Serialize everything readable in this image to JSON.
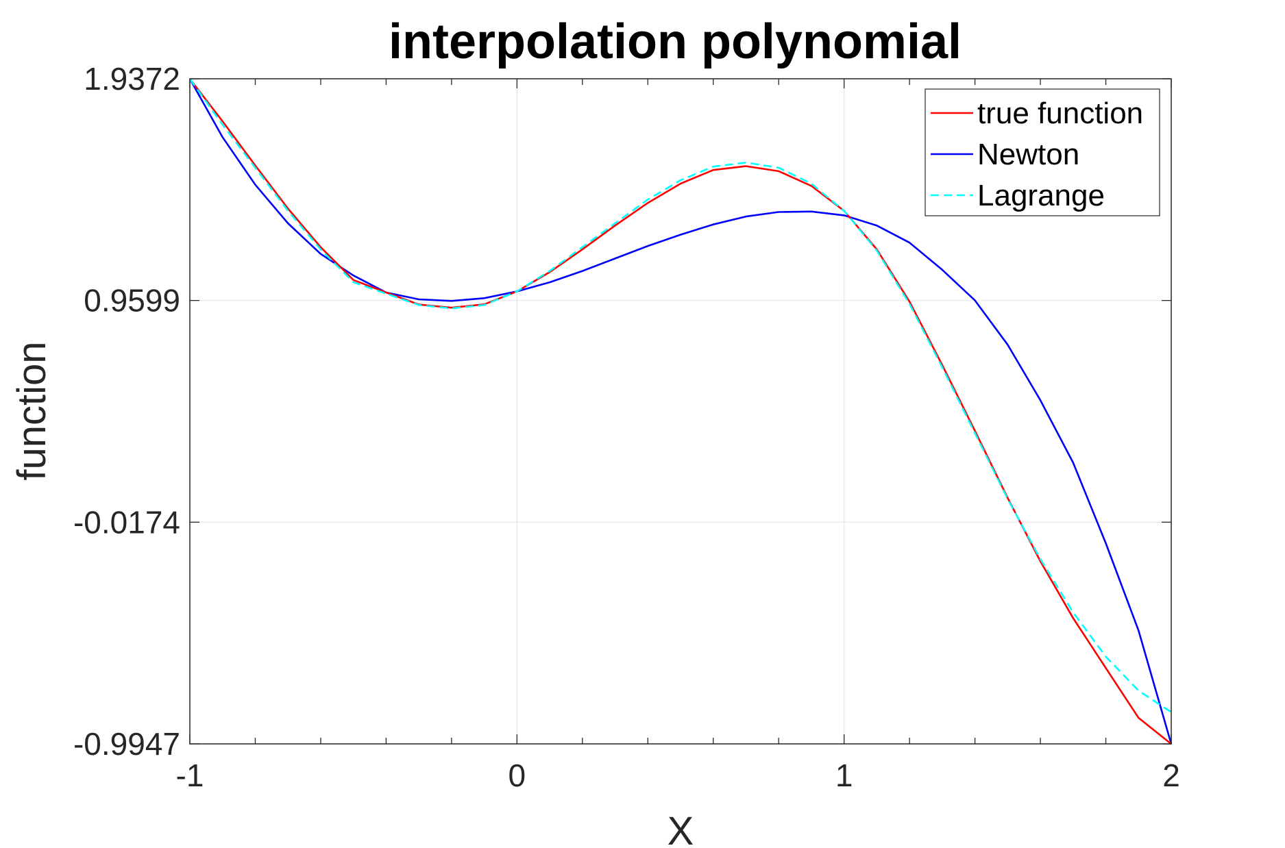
{
  "chart_data": {
    "type": "line",
    "title": "interpolation polynomial",
    "xlabel": "X",
    "ylabel": "function",
    "xlim": [
      -1,
      2
    ],
    "ylim": [
      -0.9947,
      1.9372
    ],
    "xticks": [
      "-1",
      "0",
      "1",
      "2"
    ],
    "yticks": [
      "-0.9947",
      "-0.0174",
      "0.9599",
      "1.9372"
    ],
    "xtick_values": [
      -1,
      0,
      1,
      2
    ],
    "ytick_values": [
      -0.9947,
      -0.0174,
      0.9599,
      1.9372
    ],
    "grid": true,
    "legend_position": "top-right",
    "x": [
      -1.0,
      -0.9,
      -0.8,
      -0.7,
      -0.6,
      -0.5,
      -0.4,
      -0.3,
      -0.2,
      -0.1,
      0.0,
      0.1,
      0.2,
      0.3,
      0.4,
      0.5,
      0.6,
      0.7,
      0.8,
      0.9,
      1.0,
      1.1,
      1.2,
      1.3,
      1.4,
      1.5,
      1.6,
      1.7,
      1.8,
      1.9,
      2.0
    ],
    "series": [
      {
        "name": "true function",
        "color": "#ff0000",
        "dash": "solid",
        "values": [
          1.937,
          1.75,
          1.555,
          1.365,
          1.195,
          1.05,
          0.995,
          0.942,
          0.928,
          0.943,
          1.0,
          1.085,
          1.185,
          1.29,
          1.39,
          1.475,
          1.535,
          1.552,
          1.53,
          1.465,
          1.355,
          1.185,
          0.955,
          0.675,
          0.385,
          0.09,
          -0.19,
          -0.44,
          -0.66,
          -0.88,
          -0.995
        ]
      },
      {
        "name": "Newton",
        "color": "#0000ff",
        "dash": "solid",
        "values": [
          1.937,
          1.68,
          1.47,
          1.3,
          1.165,
          1.07,
          0.995,
          0.965,
          0.958,
          0.97,
          1.0,
          1.04,
          1.09,
          1.145,
          1.2,
          1.25,
          1.295,
          1.33,
          1.35,
          1.352,
          1.335,
          1.29,
          1.215,
          1.095,
          0.96,
          0.765,
          0.52,
          0.245,
          -0.11,
          -0.495,
          -0.995
        ]
      },
      {
        "name": "Lagrange",
        "color": "#00ffff",
        "dash": "dashed",
        "values": [
          1.937,
          1.735,
          1.545,
          1.355,
          1.185,
          1.04,
          0.99,
          0.94,
          0.925,
          0.94,
          1.0,
          1.09,
          1.195,
          1.3,
          1.405,
          1.49,
          1.55,
          1.568,
          1.545,
          1.475,
          1.355,
          1.18,
          0.945,
          0.665,
          0.375,
          0.085,
          -0.18,
          -0.415,
          -0.61,
          -0.76,
          -0.855
        ]
      }
    ]
  }
}
